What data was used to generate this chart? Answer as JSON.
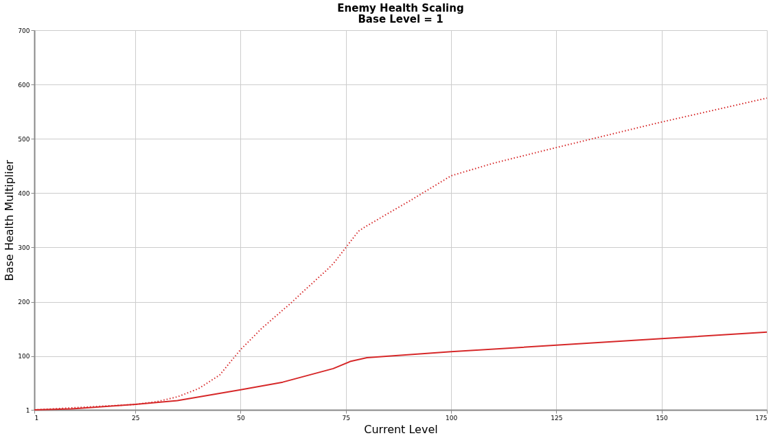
{
  "chart_data": {
    "type": "line",
    "title": "Enemy Health Scaling",
    "subtitle": "Base Level = 1",
    "xlabel": "Current Level",
    "ylabel": "Base Health Multiplier",
    "xlim": [
      1,
      175
    ],
    "xticks": [
      1,
      25,
      50,
      75,
      100,
      125,
      150,
      175
    ],
    "ylim": [
      1,
      700
    ],
    "yticks": [
      1,
      100,
      200,
      300,
      400,
      500,
      600,
      700
    ],
    "grid": true,
    "marker": "none",
    "series": [
      {
        "color": "#d62728",
        "line_style": "solid",
        "x": [
          1,
          10,
          25,
          35,
          50,
          60,
          72,
          76,
          80,
          100,
          125,
          150,
          175
        ],
        "values": [
          1,
          3,
          11,
          18,
          38,
          52,
          77,
          90,
          97,
          108,
          120,
          132,
          144
        ]
      },
      {
        "color": "#d62728",
        "line_style": "dotted",
        "x": [
          1,
          25,
          30,
          35,
          40,
          45,
          50,
          55,
          62,
          65,
          70,
          72,
          75,
          78,
          80,
          90,
          100,
          110,
          125,
          150,
          175
        ],
        "values": [
          1,
          11,
          16,
          25,
          40,
          65,
          112,
          151,
          198,
          220,
          255,
          270,
          300,
          330,
          340,
          385,
          432,
          455,
          484,
          531,
          575
        ]
      }
    ]
  }
}
